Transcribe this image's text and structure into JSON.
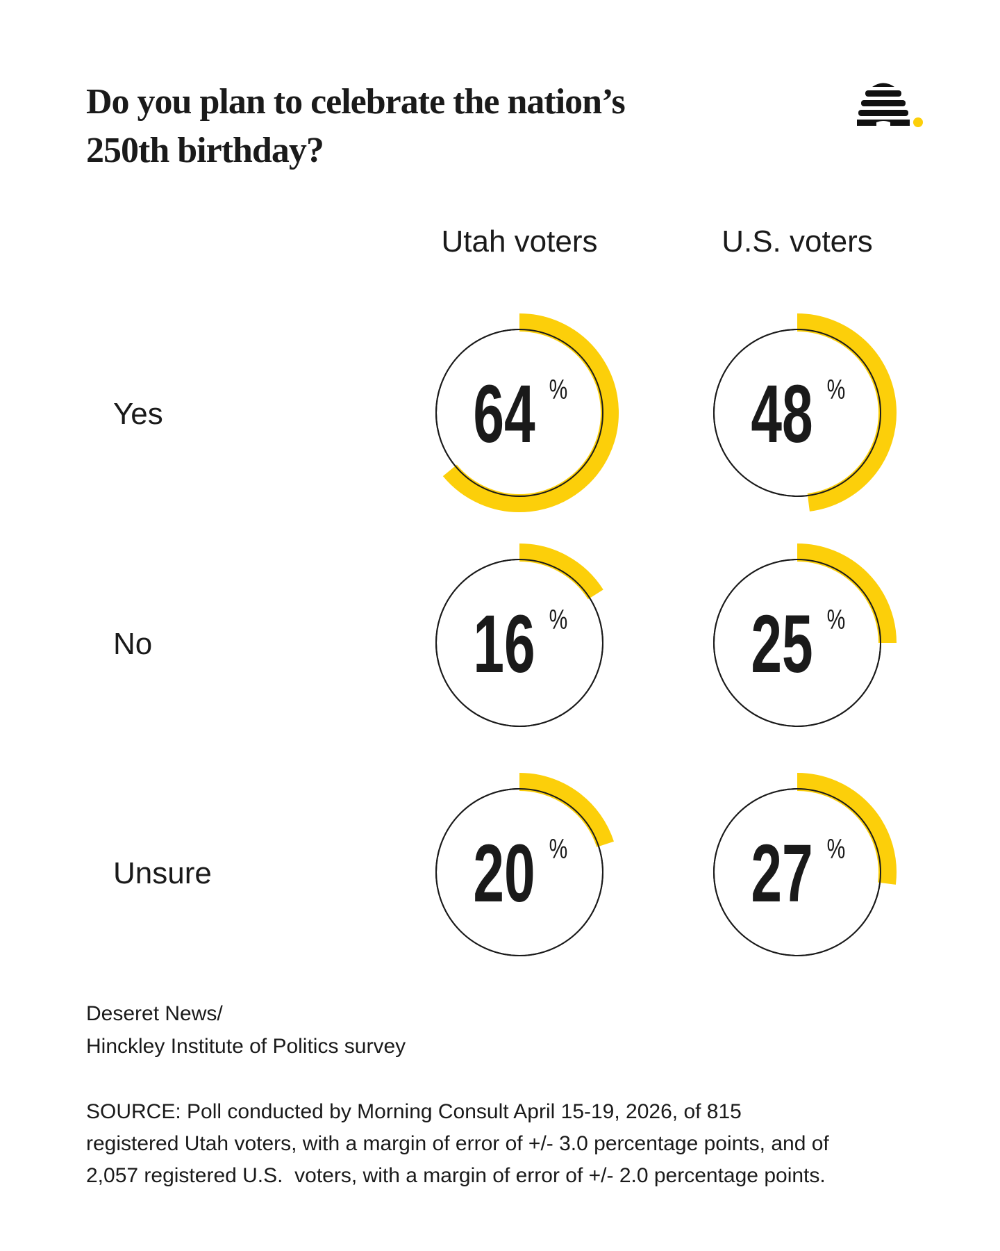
{
  "chart_data": {
    "type": "radial",
    "title": [
      "Do you plan to celebrate the nation’s",
      "250th birthday?"
    ],
    "categories": [
      "Yes",
      "No",
      "Unsure"
    ],
    "series": [
      {
        "name": "Utah voters",
        "color": "#fccf0a",
        "values": [
          64,
          16,
          20
        ]
      },
      {
        "name": "U.S. voters",
        "color": "#fccf0a",
        "values": [
          48,
          25,
          27
        ]
      }
    ],
    "unit": "%",
    "ylim": [
      0,
      100
    ],
    "credit": [
      "Deseret News/",
      "Hinckley Institute of Politics survey"
    ],
    "source": [
      "SOURCE: Poll conducted by Morning Consult April 15-19, 2026, of 815",
      "registered Utah voters, with a margin of error of +/- 3.0 percentage points, and of",
      "2,057 registered U.S.  voters, with a margin of error of +/- 2.0 percentage points."
    ]
  }
}
